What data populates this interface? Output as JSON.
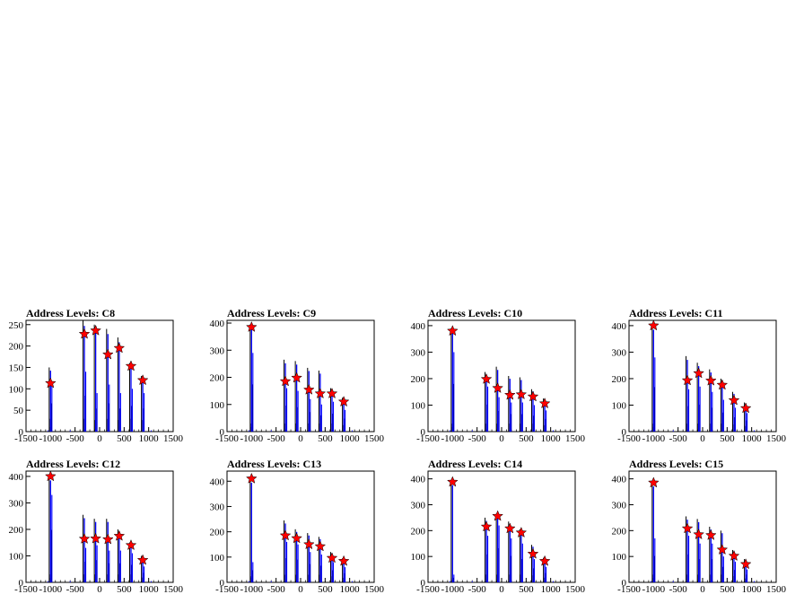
{
  "chart_data": [
    {
      "type": "line",
      "title": "Address Levels: C8",
      "xlim": [
        -1500,
        1500
      ],
      "ylim": [
        0,
        260
      ],
      "xticks": [
        "-1500",
        "-1000",
        "-500",
        "0",
        "500",
        "1000",
        "1500"
      ],
      "yticks": [
        0,
        50,
        100,
        150,
        200,
        250
      ],
      "xtick_labels": [
        "-1500",
        "-1000",
        "-500",
        "0",
        "500",
        "1000",
        "1500"
      ],
      "ytick_labels": [
        "0",
        "50",
        "100",
        "150",
        "200",
        "250"
      ],
      "x_peak_positions": [
        -1000,
        -310,
        -80,
        170,
        400,
        640,
        880
      ],
      "peaks": [
        113,
        228,
        236,
        180,
        195,
        153,
        120
      ],
      "peak_range": [
        [
          110,
          150
        ],
        [
          140,
          260
        ],
        [
          90,
          250
        ],
        [
          110,
          240
        ],
        [
          90,
          220
        ],
        [
          100,
          160
        ],
        [
          90,
          130
        ]
      ]
    },
    {
      "type": "line",
      "title": "Address Levels: C9",
      "xlim": [
        -1500,
        1500
      ],
      "ylim": [
        0,
        410
      ],
      "xtick_labels": [
        "-1500",
        "-1000",
        "-500",
        "0",
        "500",
        "1000",
        "1500"
      ],
      "ytick_labels": [
        "0",
        "100",
        "200",
        "300",
        "400"
      ],
      "yticks": [
        0,
        100,
        200,
        300,
        400
      ],
      "x_peak_positions": [
        -1000,
        -310,
        -80,
        170,
        400,
        640,
        880
      ],
      "peaks": [
        385,
        185,
        198,
        154,
        140,
        140,
        110
      ],
      "peak_range": [
        [
          290,
          395
        ],
        [
          160,
          265
        ],
        [
          150,
          260
        ],
        [
          120,
          235
        ],
        [
          100,
          225
        ],
        [
          110,
          160
        ],
        [
          80,
          125
        ]
      ]
    },
    {
      "type": "line",
      "title": "Address Levels: C10",
      "xlim": [
        -1500,
        1500
      ],
      "ylim": [
        0,
        420
      ],
      "xtick_labels": [
        "-1500",
        "-1000",
        "-500",
        "0",
        "500",
        "1000",
        "1500"
      ],
      "ytick_labels": [
        "0",
        "100",
        "200",
        "300",
        "400"
      ],
      "yticks": [
        0,
        100,
        200,
        300,
        400
      ],
      "x_peak_positions": [
        -1000,
        -310,
        -80,
        170,
        400,
        640,
        880
      ],
      "peaks": [
        380,
        198,
        164,
        138,
        140,
        132,
        106
      ],
      "peak_range": [
        [
          300,
          390
        ],
        [
          170,
          225
        ],
        [
          130,
          245
        ],
        [
          110,
          210
        ],
        [
          110,
          205
        ],
        [
          100,
          160
        ],
        [
          80,
          125
        ]
      ]
    },
    {
      "type": "line",
      "title": "Address Levels: C11",
      "xlim": [
        -1500,
        1500
      ],
      "ylim": [
        0,
        420
      ],
      "xtick_labels": [
        "-1500",
        "-1000",
        "-500",
        "0",
        "500",
        "1000",
        "1500"
      ],
      "ytick_labels": [
        "0",
        "100",
        "200",
        "300",
        "400"
      ],
      "yticks": [
        0,
        100,
        200,
        300,
        400
      ],
      "x_peak_positions": [
        -1000,
        -310,
        -80,
        170,
        400,
        640,
        880
      ],
      "peaks": [
        400,
        193,
        220,
        192,
        176,
        118,
        88
      ],
      "peak_range": [
        [
          280,
          405
        ],
        [
          160,
          285
        ],
        [
          170,
          260
        ],
        [
          150,
          235
        ],
        [
          120,
          200
        ],
        [
          90,
          150
        ],
        [
          70,
          110
        ]
      ]
    },
    {
      "type": "line",
      "title": "Address Levels: C12",
      "xlim": [
        -1500,
        1500
      ],
      "ylim": [
        0,
        420
      ],
      "xtick_labels": [
        "-1500",
        "-1000",
        "-500",
        "0",
        "500",
        "1000",
        "1500"
      ],
      "ytick_labels": [
        "0",
        "100",
        "200",
        "300",
        "400"
      ],
      "yticks": [
        0,
        100,
        200,
        300,
        400
      ],
      "x_peak_positions": [
        -1000,
        -310,
        -80,
        170,
        400,
        640,
        880
      ],
      "peaks": [
        400,
        164,
        165,
        162,
        175,
        140,
        84
      ],
      "peak_range": [
        [
          330,
          405
        ],
        [
          130,
          255
        ],
        [
          140,
          240
        ],
        [
          120,
          240
        ],
        [
          120,
          200
        ],
        [
          110,
          150
        ],
        [
          60,
          100
        ]
      ]
    },
    {
      "type": "line",
      "title": "Address Levels: C13",
      "xlim": [
        -1500,
        1500
      ],
      "ylim": [
        0,
        440
      ],
      "xtick_labels": [
        "-1500",
        "-1000",
        "-500",
        "0",
        "500",
        "1000",
        "1500"
      ],
      "ytick_labels": [
        "0",
        "100",
        "200",
        "300",
        "400"
      ],
      "yticks": [
        0,
        100,
        200,
        300,
        400
      ],
      "x_peak_positions": [
        -1000,
        -310,
        -80,
        170,
        400,
        640,
        880
      ],
      "peaks": [
        410,
        185,
        174,
        150,
        142,
        96,
        84
      ],
      "peak_range": [
        [
          80,
          415
        ],
        [
          160,
          245
        ],
        [
          150,
          210
        ],
        [
          120,
          195
        ],
        [
          110,
          180
        ],
        [
          80,
          120
        ],
        [
          60,
          95
        ]
      ]
    },
    {
      "type": "line",
      "title": "Address Levels: C14",
      "xlim": [
        -1500,
        1500
      ],
      "ylim": [
        0,
        430
      ],
      "xtick_labels": [
        "-1500",
        "-1000",
        "-500",
        "0",
        "500",
        "1000",
        "1500"
      ],
      "ytick_labels": [
        "0",
        "100",
        "200",
        "300",
        "400"
      ],
      "yticks": [
        0,
        100,
        200,
        300,
        400
      ],
      "x_peak_positions": [
        -1000,
        -310,
        -80,
        170,
        400,
        640,
        880
      ],
      "peaks": [
        388,
        215,
        256,
        208,
        192,
        110,
        82
      ],
      "peak_range": [
        [
          30,
          395
        ],
        [
          180,
          250
        ],
        [
          220,
          265
        ],
        [
          170,
          235
        ],
        [
          150,
          205
        ],
        [
          90,
          145
        ],
        [
          60,
          95
        ]
      ]
    },
    {
      "type": "line",
      "title": "Address Levels: C15",
      "xlim": [
        -1500,
        1500
      ],
      "ylim": [
        0,
        430
      ],
      "xtick_labels": [
        "-1500",
        "-1000",
        "-500",
        "0",
        "500",
        "1000",
        "1500"
      ],
      "ytick_labels": [
        "0",
        "100",
        "200",
        "300",
        "400"
      ],
      "yticks": [
        0,
        100,
        200,
        300,
        400
      ],
      "x_peak_positions": [
        -1000,
        -310,
        -80,
        170,
        400,
        640,
        880
      ],
      "peaks": [
        385,
        208,
        185,
        182,
        126,
        102,
        70
      ],
      "peak_range": [
        [
          170,
          390
        ],
        [
          180,
          255
        ],
        [
          150,
          245
        ],
        [
          150,
          215
        ],
        [
          100,
          200
        ],
        [
          80,
          125
        ],
        [
          50,
          90
        ]
      ]
    }
  ]
}
